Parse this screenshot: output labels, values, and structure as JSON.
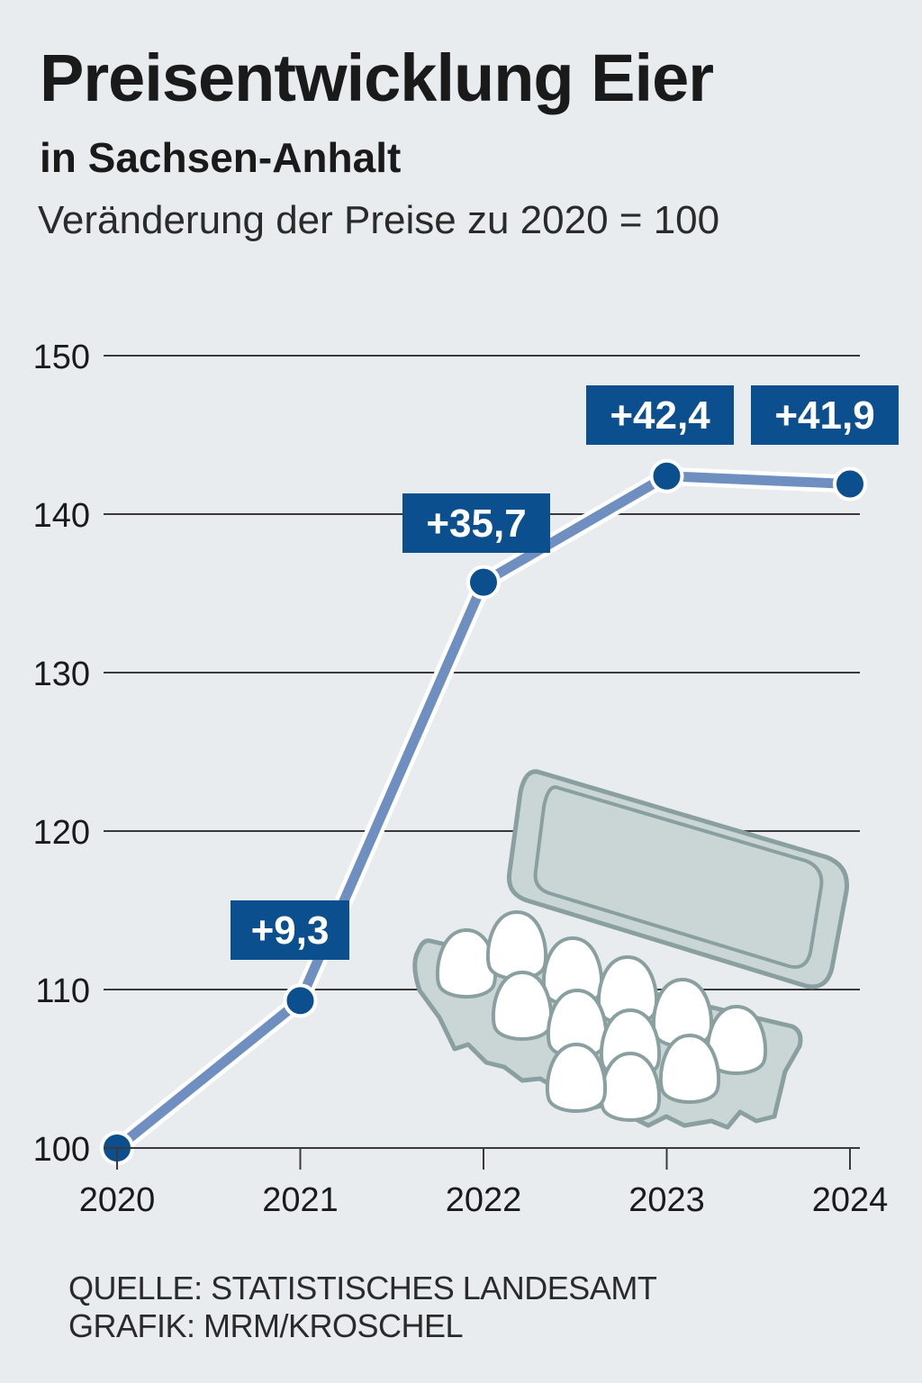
{
  "chart_data": {
    "type": "line",
    "title": "Preisentwicklung Eier",
    "subtitle": "in Sachsen-Anhalt",
    "description": "Veränderung der Preise zu 2020 = 100",
    "categories": [
      "2020",
      "2021",
      "2022",
      "2023",
      "2024"
    ],
    "values": [
      100,
      109.3,
      135.7,
      142.4,
      141.9
    ],
    "labels": [
      "",
      "+9,3",
      "+35,7",
      "+42,4",
      "+41,9"
    ],
    "yticks": [
      "100",
      "110",
      "120",
      "130",
      "140",
      "150"
    ],
    "ylim": [
      100,
      150
    ],
    "grid": true
  },
  "source": {
    "line1": "QUELLE: STATISTISCHES LANDESAMT",
    "line2": "GRAFIK: MRM/KROSCHEL"
  },
  "colors": {
    "background": "#e8ecef",
    "line": "#6f8fc0",
    "marker": "#0b4f8e",
    "label_box": "#0b4f8e",
    "grid": "#3a3a3a",
    "carton_fill": "#c9d6d5",
    "carton_stroke": "#8aa0a0",
    "egg": "#ffffff"
  }
}
